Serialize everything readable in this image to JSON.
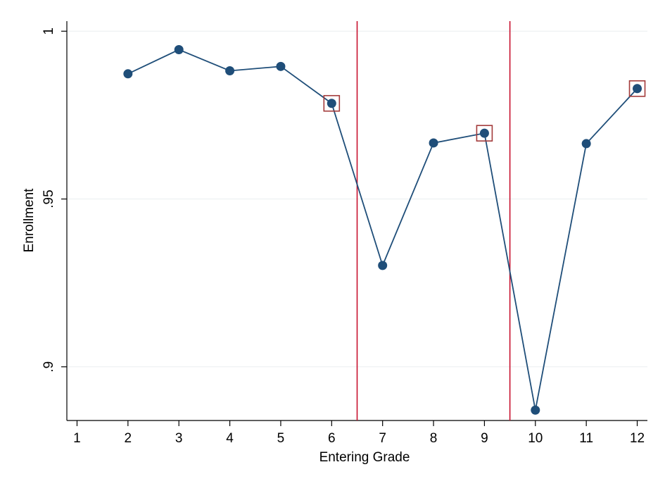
{
  "chart_data": {
    "type": "line",
    "x": [
      2,
      3,
      4,
      5,
      6,
      7,
      8,
      9,
      10,
      11,
      12
    ],
    "series": [
      {
        "name": "Enrollment",
        "color": "#1f4e79",
        "values": [
          0.9873,
          0.9945,
          0.9882,
          0.9895,
          0.9785,
          0.9302,
          0.9667,
          0.9696,
          0.8871,
          0.9665,
          0.9829
        ]
      }
    ],
    "x_label": "Entering Grade",
    "y_label": "Enrollment",
    "xlim": [
      0.8,
      12.2
    ],
    "xticks": [
      1,
      2,
      3,
      4,
      5,
      6,
      7,
      8,
      9,
      10,
      11,
      12
    ],
    "ylim": [
      0.884,
      1.003
    ],
    "yticks": [
      {
        "value": 0.9,
        "label": ".9"
      },
      {
        "value": 0.95,
        "label": ".95"
      },
      1
    ],
    "grid": true,
    "vlines": [
      6.5,
      9.5
    ],
    "vline_color": "#c8102e",
    "highlighted_x": [
      6,
      9,
      12
    ],
    "highlight_color": "#a33a3a"
  }
}
